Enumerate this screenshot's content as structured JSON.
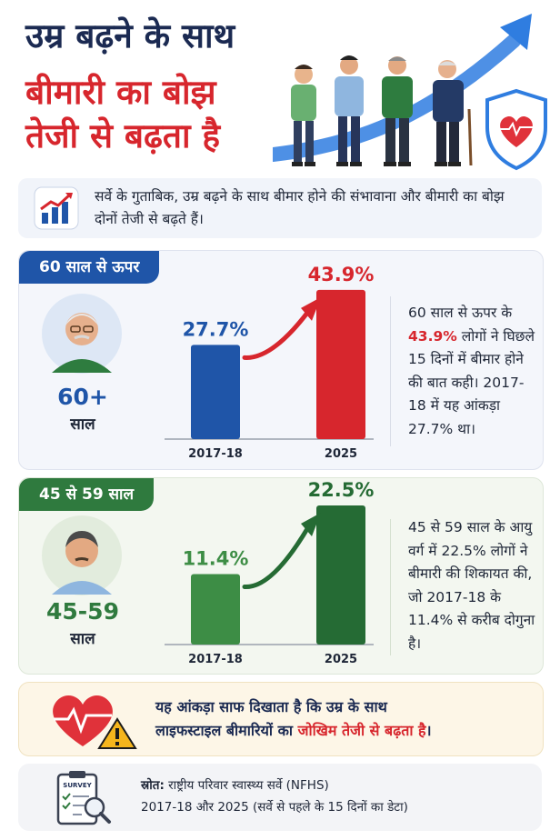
{
  "header": {
    "line1": "उम्र बढ़ने के साथ",
    "line2": "बीमारी का बोझ",
    "line3": "तेजी से बढ़ता है"
  },
  "intro": {
    "text": "सर्वे के गुताबिक, उम्र बढ़ने के साथ बीमार होने की संभावाना और बीमारी का बोझ दोनों तेजी से बढ़ते हैं।",
    "icon": "bar-chart-rising-icon"
  },
  "panel_60": {
    "tag": "60 साल से ऊपर",
    "age_big": "60+",
    "age_sub": "साल",
    "desc_before": "60 साल से ऊपर के ",
    "desc_highlight": "43.9%",
    "desc_after": " लोगों ने घिछले 15 दिनों में बीमार होने की बात कही। 2017-18 में यह आंकड़ा 27.7% था।",
    "color": "#1f55a8"
  },
  "panel_45": {
    "tag": "45 से 59 साल",
    "age_big": "45-59",
    "age_sub": "साल",
    "desc": "45 से 59 साल के आयु वर्ग में 22.5% लोगों ने बीमारी की शिकायत की, जो 2017-18 के 11.4% से करीब दोगुना है।",
    "color": "#2f7a3e"
  },
  "chart_data": [
    {
      "type": "bar",
      "categories": [
        "2017-18",
        "2025"
      ],
      "values": [
        27.7,
        43.9
      ],
      "value_labels": [
        "27.7%",
        "43.9%"
      ],
      "colors": [
        "#1f55a8",
        "#d7262d"
      ],
      "label_colors": [
        "#1f55a8",
        "#d7262d"
      ],
      "ylim": [
        0,
        50
      ]
    },
    {
      "type": "bar",
      "categories": [
        "2017-18",
        "2025"
      ],
      "values": [
        11.4,
        22.5
      ],
      "value_labels": [
        "11.4%",
        "22.5%"
      ],
      "colors": [
        "#3d8d45",
        "#256b34"
      ],
      "label_colors": [
        "#3d8d45",
        "#256b34"
      ],
      "ylim": [
        0,
        25
      ]
    }
  ],
  "warning": {
    "text_line1": "यह आंकड़ा साफ दिखाता है कि उम्र के साथ",
    "text_line2_before": "लाइफस्टाइल बीमारियों का ",
    "text_line2_highlight": "जोखिम तेजी से बढ़ता है",
    "text_line2_after": "।",
    "icon": "heart-warning-icon"
  },
  "source": {
    "label": "स्रोत:",
    "line1": "राष्ट्रीय परिवार स्वास्थ्य सर्वे (NFHS)",
    "line2": "2017-18 और 2025 (सर्वे से पहले के 15 दिनों का डेटा)",
    "clipboard_label": "SURVEY"
  },
  "colors": {
    "navy": "#1b2a52",
    "red": "#d7262d",
    "blue": "#1f55a8",
    "green": "#2f7a3e"
  }
}
